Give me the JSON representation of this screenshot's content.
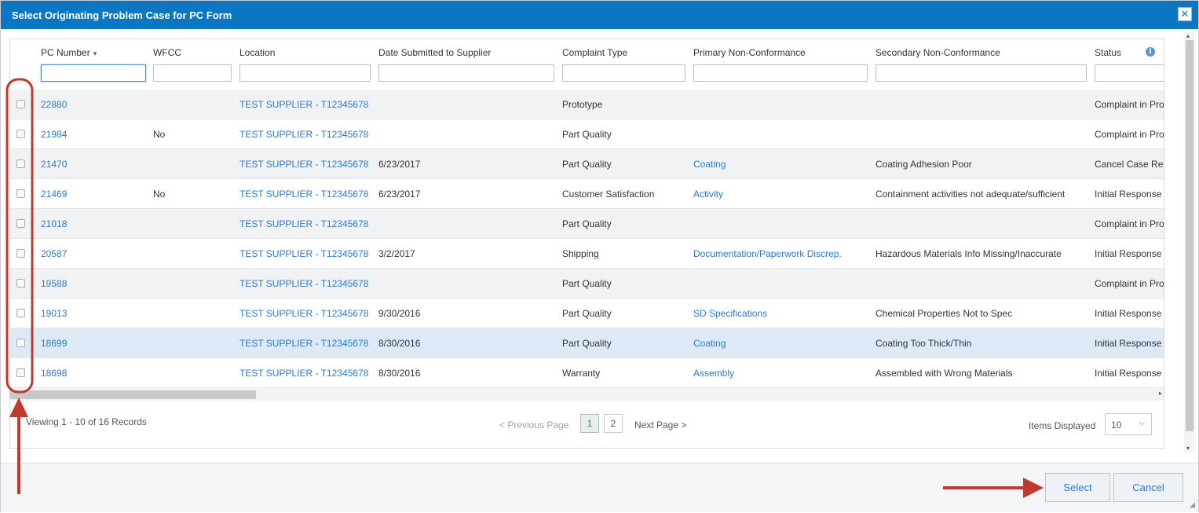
{
  "dialog": {
    "title": "Select Originating Problem Case for PC Form",
    "close_symbol": "✕"
  },
  "grid": {
    "columns": [
      {
        "label": "PC Number",
        "sort_icon": "▾"
      },
      {
        "label": "WFCC"
      },
      {
        "label": "Location"
      },
      {
        "label": "Date Submitted to Supplier"
      },
      {
        "label": "Complaint Type"
      },
      {
        "label": "Primary Non-Conformance"
      },
      {
        "label": "Secondary Non-Conformance"
      },
      {
        "label": "Status"
      }
    ],
    "info_icon": "i",
    "filters": [
      "",
      "",
      "",
      "",
      "",
      "",
      "",
      ""
    ],
    "rows": [
      {
        "pc": "22880",
        "wfcc": "",
        "location": "TEST SUPPLIER - T12345678",
        "date": "",
        "type": "Prototype",
        "primary": "",
        "secondary": "",
        "status": "Complaint in Pro"
      },
      {
        "pc": "21984",
        "wfcc": "No",
        "location": "TEST SUPPLIER - T12345678",
        "date": "",
        "type": "Part Quality",
        "primary": "",
        "secondary": "",
        "status": "Complaint in Pro"
      },
      {
        "pc": "21470",
        "wfcc": "",
        "location": "TEST SUPPLIER - T12345678",
        "date": "6/23/2017",
        "type": "Part Quality",
        "primary": "Coating",
        "secondary": "Coating Adhesion Poor",
        "status": "Cancel Case Rev"
      },
      {
        "pc": "21469",
        "wfcc": "No",
        "location": "TEST SUPPLIER - T12345678",
        "date": "6/23/2017",
        "type": "Customer Satisfaction",
        "primary": "Activity",
        "secondary": "Containment activities not adequate/sufficient",
        "status": "Initial Response"
      },
      {
        "pc": "21018",
        "wfcc": "",
        "location": "TEST SUPPLIER - T12345678",
        "date": "",
        "type": "Part Quality",
        "primary": "",
        "secondary": "",
        "status": "Complaint in Pro"
      },
      {
        "pc": "20587",
        "wfcc": "",
        "location": "TEST SUPPLIER - T12345678",
        "date": "3/2/2017",
        "type": "Shipping",
        "primary": "Documentation/Paperwork Discrep.",
        "secondary": "Hazardous Materials Info Missing/Inaccurate",
        "status": "Initial Response"
      },
      {
        "pc": "19588",
        "wfcc": "",
        "location": "TEST SUPPLIER - T12345678",
        "date": "",
        "type": "Part Quality",
        "primary": "",
        "secondary": "",
        "status": "Complaint in Pro"
      },
      {
        "pc": "19013",
        "wfcc": "",
        "location": "TEST SUPPLIER - T12345678",
        "date": "9/30/2016",
        "type": "Part Quality",
        "primary": "SD Specifications",
        "secondary": "Chemical Properties Not to Spec",
        "status": "Initial Response"
      },
      {
        "pc": "18699",
        "wfcc": "",
        "location": "TEST SUPPLIER - T12345678",
        "date": "8/30/2016",
        "type": "Part Quality",
        "primary": "Coating",
        "secondary": "Coating Too Thick/Thin",
        "status": "Initial Response"
      },
      {
        "pc": "18698",
        "wfcc": "",
        "location": "TEST SUPPLIER - T12345678",
        "date": "8/30/2016",
        "type": "Warranty",
        "primary": "Assembly",
        "secondary": "Assembled with Wrong Materials",
        "status": "Initial Response"
      }
    ],
    "highlighted_row": 8
  },
  "footer": {
    "viewing": "Viewing 1 - 10 of 16 Records",
    "prev": "< Previous Page",
    "pages": [
      "1",
      "2"
    ],
    "current_page": "1",
    "next": "Next Page >",
    "items_label": "Items Displayed",
    "items_value": "10",
    "items_chevron": "⌵"
  },
  "scroll": {
    "left_arrow": "◂",
    "right_arrow": "▸",
    "up_arrow": "▴",
    "down_arrow": "▾"
  },
  "actions": {
    "select": "Select",
    "cancel": "Cancel",
    "grip": "◢"
  },
  "colors": {
    "title_bar": "#0b76c2",
    "link": "#2b7bc8",
    "annotation": "#c0392b"
  }
}
